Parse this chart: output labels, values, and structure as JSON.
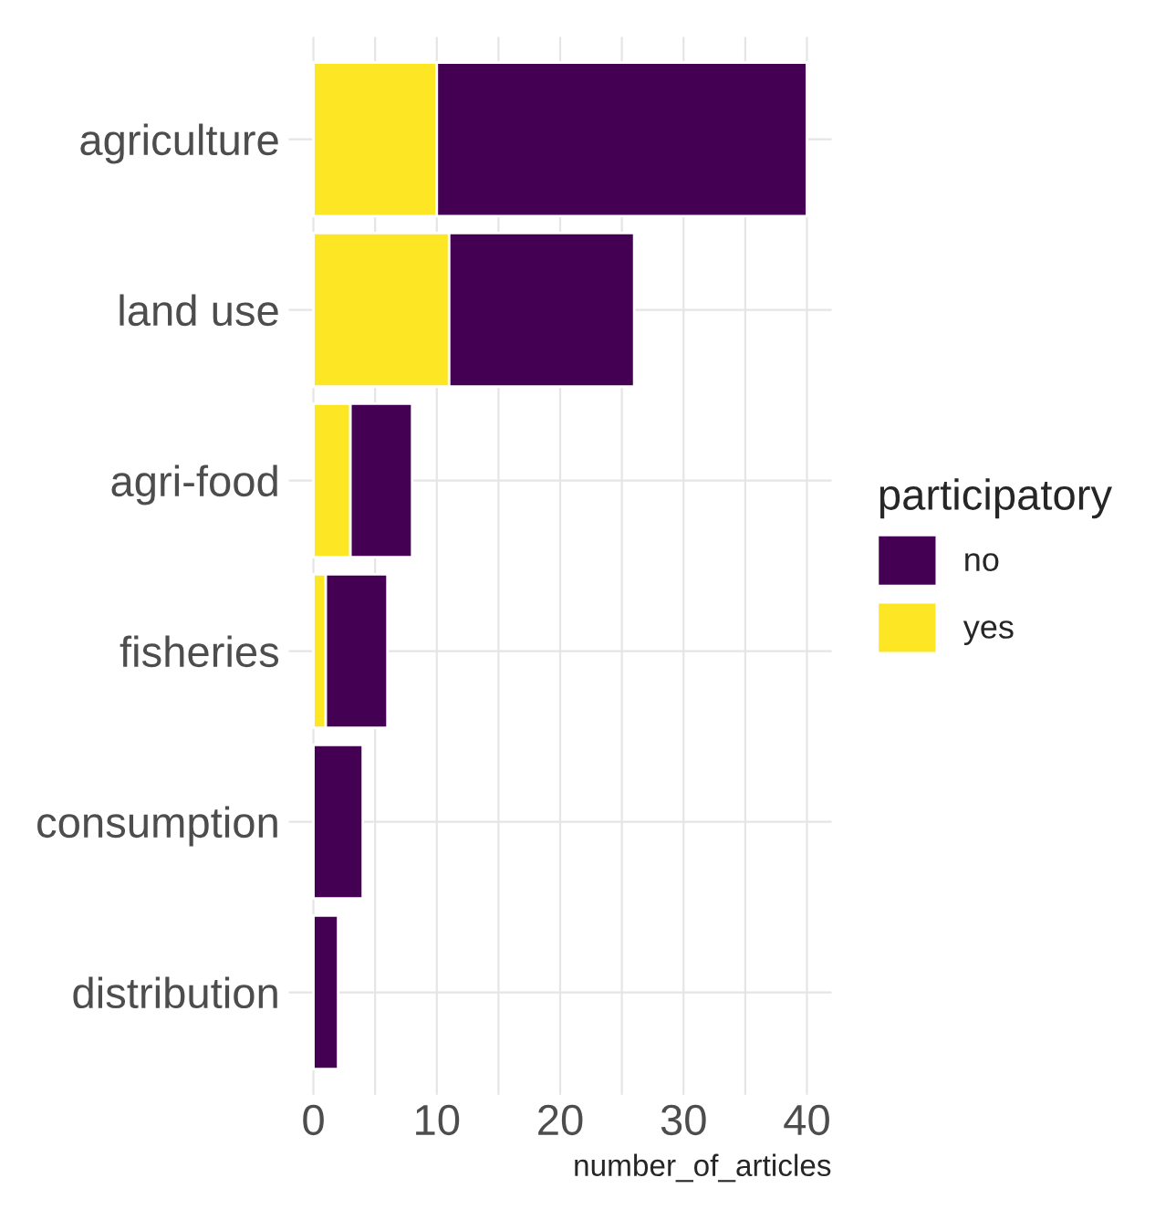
{
  "chart_data": {
    "type": "bar",
    "orientation": "horizontal",
    "stacked": true,
    "categories": [
      "agriculture",
      "land use",
      "agri-food",
      "fisheries",
      "consumption",
      "distribution"
    ],
    "series": [
      {
        "name": "yes",
        "color": "#fde725",
        "values": [
          10,
          11,
          3,
          1,
          null,
          null
        ]
      },
      {
        "name": "no",
        "color": "#440154",
        "values": [
          30,
          15,
          5,
          5,
          4,
          2
        ]
      }
    ],
    "xlabel": "number_of_articles",
    "legend_title": "participatory",
    "legend": "right",
    "xlim": [
      -2,
      42
    ],
    "xticks": [
      0,
      {
        "value": 5,
        "label": null
      },
      10,
      {
        "value": 15,
        "label": null
      },
      20,
      {
        "value": 25,
        "label": null
      },
      30,
      {
        "value": 35,
        "label": null
      },
      40
    ],
    "grid": true
  }
}
